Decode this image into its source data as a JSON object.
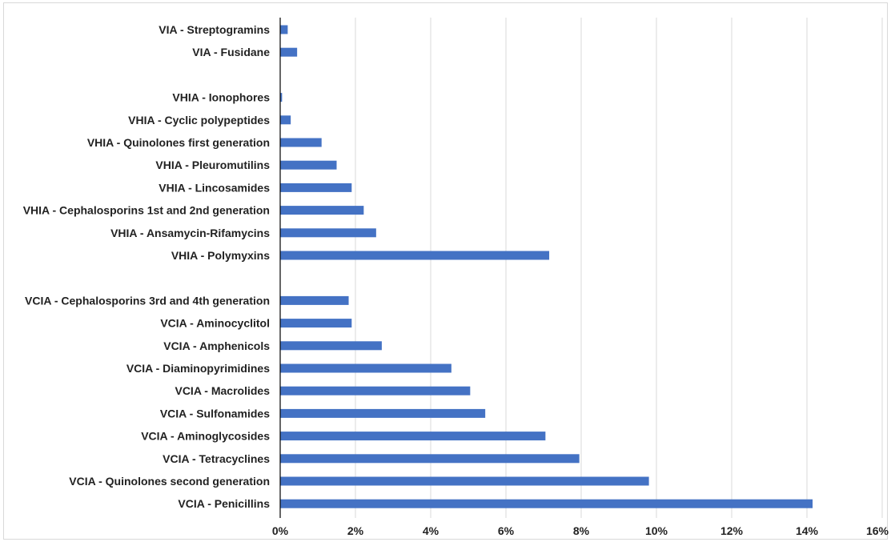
{
  "chart_data": {
    "type": "bar",
    "orientation": "horizontal",
    "title": "",
    "xlabel": "",
    "ylabel": "",
    "xlim": [
      0,
      16
    ],
    "x_ticks": [
      0,
      2,
      4,
      6,
      8,
      10,
      12,
      14,
      16
    ],
    "tick_suffix": "%",
    "grid": "vertical",
    "bar_color": "#4472c4",
    "categories": [
      "VIA - Streptogramins",
      "VIA - Fusidane",
      "",
      "VHIA - Ionophores",
      "VHIA - Cyclic polypeptides",
      "VHIA - Quinolones first generation",
      "VHIA - Pleuromutilins",
      "VHIA - Lincosamides",
      "VHIA - Cephalosporins 1st and 2nd generation",
      "VHIA - Ansamycin-Rifamycins",
      "VHIA - Polymyxins",
      "",
      "VCIA - Cephalosporins 3rd and 4th generation",
      "VCIA - Aminocyclitol",
      "VCIA - Amphenicols",
      "VCIA - Diaminopyrimidines",
      "VCIA - Macrolides",
      "VCIA - Sulfonamides",
      "VCIA - Aminoglycosides",
      "VCIA - Tetracyclines",
      "VCIA - Quinolones second generation",
      "VCIA - Penicillins"
    ],
    "values": [
      0.2,
      0.45,
      null,
      0.05,
      0.28,
      1.1,
      1.5,
      1.9,
      2.22,
      2.55,
      7.15,
      null,
      1.82,
      1.9,
      2.7,
      4.55,
      5.05,
      5.45,
      7.05,
      7.95,
      9.8,
      14.15
    ]
  }
}
